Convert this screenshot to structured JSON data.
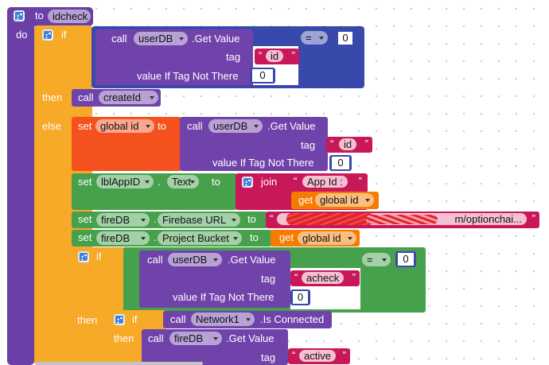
{
  "procedure": {
    "to": "to",
    "name": "idcheck",
    "do": "do"
  },
  "quotes": {
    "open": "“",
    "close": "”"
  },
  "if1": {
    "if": "if",
    "then": "then",
    "else": "else",
    "condition": {
      "call": "call",
      "component": "userDB",
      "method": ".Get Value",
      "tag": "tag",
      "tag_value": "id",
      "default_label": "value If Tag Not There",
      "default_value": 0,
      "op": "=",
      "compare_to": 0
    },
    "then_call": {
      "call": "call",
      "procedure": "createId"
    }
  },
  "set_global": {
    "set": "set",
    "variable": "global id",
    "to": "to",
    "call": "call",
    "component": "userDB",
    "method": ".Get Value",
    "tag": "tag",
    "tag_value": "id",
    "default_label": "value If Tag Not There",
    "default_value": 0
  },
  "set_label": {
    "set": "set",
    "component": "lblAppID",
    "dot": ".",
    "property": "Text",
    "to": "to",
    "join": "join",
    "text": "App Id :",
    "get": "get",
    "variable": "global id"
  },
  "set_url": {
    "set": "set",
    "component": "fireDB",
    "dot": ".",
    "property": "Firebase URL",
    "to": "to",
    "text": "m/optionchai..."
  },
  "set_bucket": {
    "set": "set",
    "component": "fireDB",
    "dot": ".",
    "property": "Project Bucket",
    "to": "to",
    "get": "get",
    "variable": "global id"
  },
  "if2": {
    "if": "if",
    "then": "then",
    "condition": {
      "call": "call",
      "component": "userDB",
      "method": ".Get Value",
      "tag": "tag",
      "tag_value": "acheck",
      "default_label": "value If Tag Not There",
      "default_value": 0,
      "op": "=",
      "compare_to": 0
    }
  },
  "if3": {
    "if": "if",
    "then": "then",
    "call": "call",
    "component": "Network1",
    "method": ".Is Connected",
    "then_call": {
      "call": "call",
      "component": "fireDB",
      "method": ".Get Value",
      "tag": "tag",
      "tag_value": "active"
    }
  }
}
